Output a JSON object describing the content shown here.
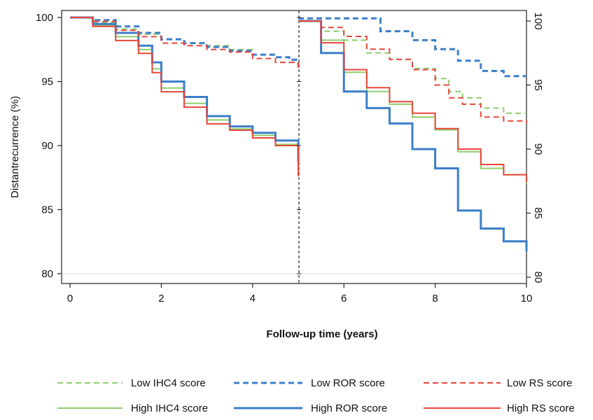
{
  "chart_data": {
    "type": "line",
    "xlabel": "Follow-up time (years)",
    "ylabel": "Distantrecurrence (%)",
    "xlim": [
      0,
      10
    ],
    "x_ticks": [
      "0",
      "2",
      "4",
      "6",
      "8",
      "10"
    ],
    "y_left": {
      "ylim": [
        80,
        100
      ],
      "ticks": [
        "80",
        "85",
        "90",
        "95",
        "100"
      ]
    },
    "y_right": {
      "ylim": [
        80,
        100
      ],
      "ticks": [
        "80",
        "85",
        "90",
        "95",
        "100"
      ]
    },
    "divider_x": 5,
    "grid": false,
    "legend_position": "bottom",
    "colors": {
      "ihc4": "#8fce6e",
      "ror": "#3a7fc9",
      "rs": "#e8463a"
    },
    "series": [
      {
        "name": "Low IHC4 score",
        "group": "ihc4",
        "style": "dashed",
        "panel": 1,
        "x": [
          0,
          0.5,
          1,
          1.5,
          2,
          2.5,
          3,
          3.5,
          4,
          4.5,
          4.8,
          5
        ],
        "y": [
          100,
          99.6,
          99.1,
          98.7,
          98.3,
          98.0,
          97.8,
          97.5,
          97.1,
          96.9,
          96.5,
          96.0
        ]
      },
      {
        "name": "High IHC4 score",
        "group": "ihc4",
        "style": "solid",
        "panel": 1,
        "x": [
          0,
          0.5,
          1,
          1.5,
          1.8,
          2,
          2.5,
          3,
          3.5,
          4,
          4.5,
          5
        ],
        "y": [
          100,
          99.4,
          98.5,
          97.5,
          96.0,
          94.5,
          93.3,
          92.0,
          91.3,
          90.8,
          90.1,
          88.0
        ]
      },
      {
        "name": "Low ROR score",
        "group": "ror",
        "style": "dashed",
        "panel": 1,
        "x": [
          0,
          0.5,
          1,
          1.5,
          2,
          2.5,
          3,
          3.5,
          4,
          4.5,
          4.8,
          5
        ],
        "y": [
          100,
          99.8,
          99.3,
          98.8,
          98.3,
          98.0,
          97.7,
          97.4,
          97.1,
          96.9,
          96.7,
          96.4
        ]
      },
      {
        "name": "High ROR score",
        "group": "ror",
        "style": "solid",
        "panel": 1,
        "x": [
          0,
          0.5,
          1,
          1.5,
          1.8,
          2,
          2.5,
          3,
          3.5,
          4,
          4.5,
          5
        ],
        "y": [
          100,
          99.5,
          98.8,
          97.8,
          96.5,
          95.0,
          93.8,
          92.3,
          91.5,
          91.0,
          90.4,
          88.7
        ]
      },
      {
        "name": "Low RS score",
        "group": "rs",
        "style": "dashed",
        "panel": 1,
        "x": [
          0,
          0.5,
          1,
          1.5,
          2,
          2.5,
          3,
          3.5,
          4,
          4.5,
          5
        ],
        "y": [
          100,
          99.7,
          99.0,
          98.5,
          98.0,
          97.8,
          97.5,
          97.3,
          96.8,
          96.5,
          95.9
        ]
      },
      {
        "name": "High RS score",
        "group": "rs",
        "style": "solid",
        "panel": 1,
        "x": [
          0,
          0.5,
          1,
          1.5,
          1.8,
          2,
          2.5,
          3,
          3.5,
          4,
          4.5,
          5
        ],
        "y": [
          100,
          99.3,
          98.2,
          97.2,
          95.7,
          94.2,
          93.0,
          91.7,
          91.2,
          90.6,
          90.0,
          87.6
        ]
      },
      {
        "name": "Low IHC4 score",
        "group": "ihc4",
        "style": "dashed",
        "panel": 2,
        "x": [
          5,
          5.5,
          6,
          6.5,
          7,
          7.5,
          8,
          8.3,
          8.6,
          9,
          9.5,
          10
        ],
        "y": [
          100,
          99.2,
          98.5,
          97.5,
          97.0,
          96.3,
          95.5,
          94.5,
          94.0,
          93.2,
          92.8,
          92.8
        ]
      },
      {
        "name": "High IHC4 score",
        "group": "ihc4",
        "style": "solid",
        "panel": 2,
        "x": [
          5,
          5.5,
          6,
          6.5,
          7,
          7.5,
          8,
          8.5,
          9,
          9.5,
          10
        ],
        "y": [
          100,
          98.5,
          96.0,
          94.5,
          93.5,
          92.5,
          91.5,
          89.8,
          88.5,
          88.0,
          87.3
        ]
      },
      {
        "name": "Low ROR score",
        "group": "ror",
        "style": "dashed",
        "panel": 2,
        "x": [
          5,
          5.5,
          6,
          6.4,
          6.8,
          7.5,
          8,
          8.5,
          9,
          9.5,
          10
        ],
        "y": [
          100.2,
          100.2,
          100.2,
          100.2,
          99.2,
          98.5,
          97.8,
          96.9,
          96.1,
          95.7,
          95.7
        ]
      },
      {
        "name": "High ROR score",
        "group": "ror",
        "style": "solid",
        "panel": 2,
        "x": [
          5,
          5.5,
          6,
          6.5,
          7,
          7.5,
          8,
          8.5,
          9,
          9.5,
          10
        ],
        "y": [
          100,
          97.5,
          94.5,
          93.2,
          92.0,
          90.0,
          88.5,
          85.2,
          83.8,
          82.8,
          82.0
        ]
      },
      {
        "name": "Low RS score",
        "group": "rs",
        "style": "dashed",
        "panel": 2,
        "x": [
          5,
          5.5,
          6,
          6.5,
          7,
          7.5,
          8,
          8.3,
          8.6,
          9,
          9.5,
          10
        ],
        "y": [
          100,
          99.5,
          98.8,
          97.8,
          97.0,
          96.2,
          95.0,
          94.0,
          93.5,
          92.5,
          92.2,
          92.0
        ]
      },
      {
        "name": "High RS score",
        "group": "rs",
        "style": "solid",
        "panel": 2,
        "x": [
          5,
          5.5,
          6,
          6.5,
          7,
          7.5,
          8,
          8.5,
          9,
          9.5,
          10
        ],
        "y": [
          100,
          98.3,
          96.2,
          94.8,
          93.7,
          92.8,
          91.6,
          90.0,
          88.8,
          88.0,
          87.4
        ]
      }
    ],
    "legend": [
      {
        "label": "Low IHC4 score",
        "group": "ihc4",
        "style": "dashed"
      },
      {
        "label": "Low ROR score",
        "group": "ror",
        "style": "dashed"
      },
      {
        "label": "Low RS score",
        "group": "rs",
        "style": "dashed"
      },
      {
        "label": "High IHC4 score",
        "group": "ihc4",
        "style": "solid"
      },
      {
        "label": "High ROR score",
        "group": "ror",
        "style": "solid"
      },
      {
        "label": "High RS score",
        "group": "rs",
        "style": "solid"
      }
    ]
  }
}
